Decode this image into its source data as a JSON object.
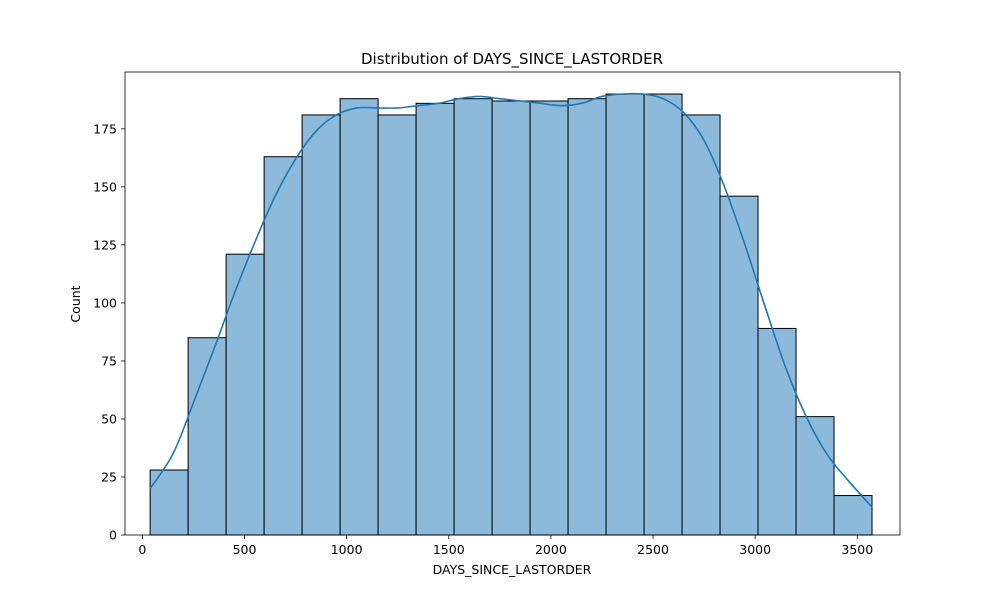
{
  "chart_data": {
    "type": "bar",
    "title": "Distribution of DAYS_SINCE_LASTORDER",
    "xlabel": "DAYS_SINCE_LASTORDER",
    "ylabel": "Count",
    "xlim": [
      -85,
      3709
    ],
    "ylim": [
      0,
      199.5
    ],
    "x_ticks": [
      0,
      500,
      1000,
      1500,
      2000,
      2500,
      3000,
      3500
    ],
    "y_ticks": [
      0,
      25,
      50,
      75,
      100,
      125,
      150,
      175
    ],
    "grid": false,
    "bins": {
      "edges": [
        38,
        224,
        410,
        596,
        782,
        968,
        1154,
        1340,
        1526,
        1712,
        1898,
        2084,
        2270,
        2456,
        2642,
        2828,
        3014,
        3200,
        3386,
        3572
      ],
      "counts": [
        28,
        85,
        121,
        163,
        181,
        188,
        181,
        186,
        188,
        187,
        187,
        188,
        190,
        190,
        181,
        146,
        89,
        51,
        17
      ]
    },
    "kde": {
      "x": [
        38,
        150,
        250,
        350,
        450,
        550,
        650,
        750,
        850,
        950,
        1050,
        1150,
        1250,
        1350,
        1450,
        1550,
        1650,
        1750,
        1850,
        1950,
        2050,
        2150,
        2250,
        2350,
        2450,
        2550,
        2650,
        2750,
        2850,
        2950,
        3050,
        3150,
        3250,
        3350,
        3450,
        3572
      ],
      "y": [
        20,
        35,
        57,
        80,
        104,
        126,
        146,
        162,
        174,
        181,
        184,
        184,
        184,
        185,
        186,
        188,
        189,
        188,
        187,
        186,
        185,
        186,
        189,
        190,
        190,
        188,
        182,
        170,
        150,
        125,
        98,
        72,
        51,
        35,
        24,
        12
      ]
    },
    "colors": {
      "bar_fill": "#8dbadb",
      "bar_edge": "#000000",
      "kde_line": "#1f77b4"
    }
  }
}
